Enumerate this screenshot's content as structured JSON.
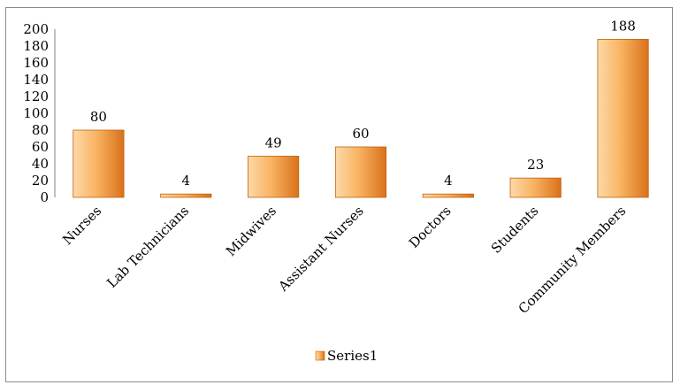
{
  "chart_data": {
    "type": "bar",
    "categories": [
      "Nurses",
      "Lab Technicians",
      "Midwives",
      "Assistant Nurses",
      "Doctors",
      "Students",
      "Community Members"
    ],
    "series": [
      {
        "name": "Series1",
        "values": [
          80,
          4,
          49,
          60,
          4,
          23,
          188
        ]
      }
    ],
    "data_labels": [
      "80",
      "4",
      "49",
      "60",
      "4",
      "23",
      "188"
    ],
    "y_ticks": [
      "0",
      "20",
      "40",
      "60",
      "80",
      "100",
      "120",
      "140",
      "160",
      "180",
      "200"
    ],
    "ylim": [
      0,
      200
    ],
    "title": "",
    "xlabel": "",
    "ylabel": "",
    "grid": false,
    "legend_position": "bottom",
    "colors": {
      "bar_light": "#fcd9a8",
      "bar_mid": "#f9b463",
      "bar_dark": "#d9711a",
      "bar_edge": "#c2620f",
      "axis": "#808080"
    }
  }
}
